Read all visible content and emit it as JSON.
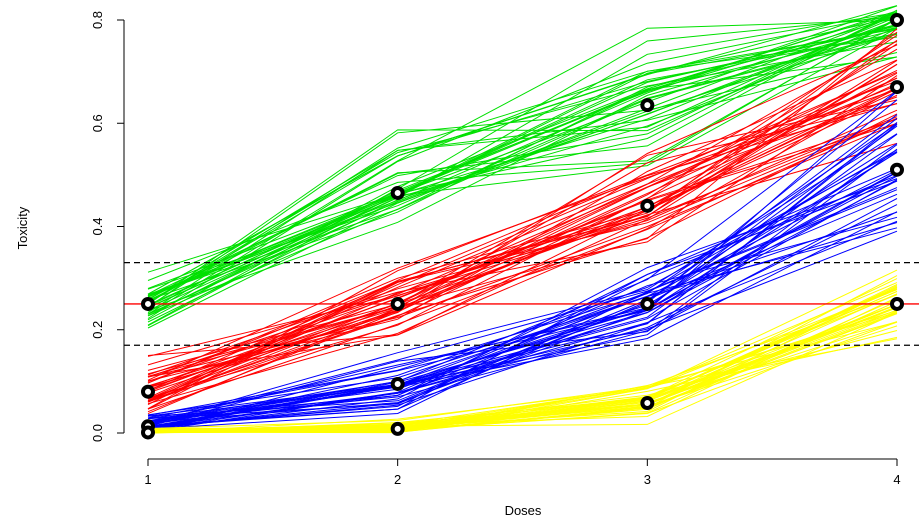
{
  "chart_data": {
    "type": "line",
    "title": "",
    "xlabel": "Doses",
    "ylabel": "Toxicity",
    "x": [
      1,
      2,
      3,
      4
    ],
    "xticks": [
      "1",
      "2",
      "3",
      "4"
    ],
    "yticks": [
      "0.0",
      "0.2",
      "0.4",
      "0.6",
      "0.8"
    ],
    "xlim": [
      1,
      4
    ],
    "ylim": [
      0,
      0.8
    ],
    "grid": false,
    "target_line": {
      "y": 0.25,
      "color": "#ff0000",
      "style": "solid"
    },
    "interval_lines": [
      {
        "y": 0.17,
        "color": "#000000",
        "style": "dashed"
      },
      {
        "y": 0.33,
        "color": "#000000",
        "style": "dashed"
      }
    ],
    "series": [
      {
        "color": "#00e000",
        "true_values": [
          0.25,
          0.465,
          0.635,
          0.8
        ],
        "band_low": [
          0.17,
          0.4,
          0.5,
          0.72
        ],
        "band_high": [
          0.33,
          0.64,
          0.8,
          0.83
        ]
      },
      {
        "color": "#ff0000",
        "true_values": [
          0.08,
          0.25,
          0.44,
          0.67
        ],
        "band_low": [
          0.02,
          0.17,
          0.35,
          0.55
        ],
        "band_high": [
          0.17,
          0.33,
          0.6,
          0.8
        ]
      },
      {
        "color": "#0000ff",
        "true_values": [
          0.013,
          0.095,
          0.25,
          0.51
        ],
        "band_low": [
          0.0,
          0.03,
          0.17,
          0.34
        ],
        "band_high": [
          0.04,
          0.17,
          0.33,
          0.72
        ]
      },
      {
        "color": "#ffff00",
        "true_values": [
          0.001,
          0.008,
          0.058,
          0.25
        ],
        "band_low": [
          0.0,
          0.0,
          0.01,
          0.17
        ],
        "band_high": [
          0.01,
          0.03,
          0.11,
          0.32
        ]
      }
    ]
  }
}
